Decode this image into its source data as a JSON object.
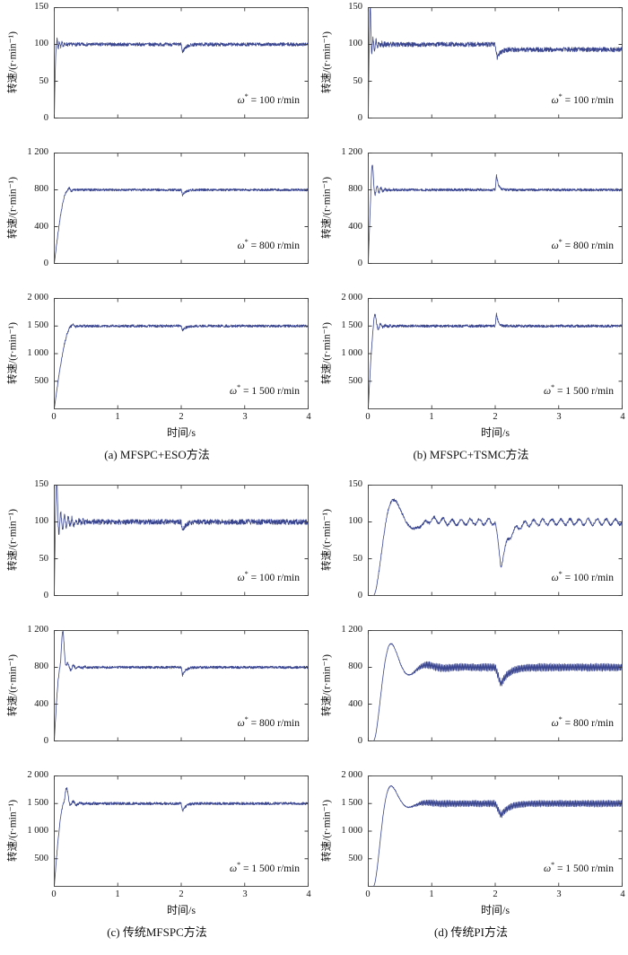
{
  "chart_data": {
    "type": "line",
    "xlabel": "时间/s",
    "ylabel": "转速/(r·min⁻¹)",
    "x_range": [
      0,
      4
    ],
    "xtick_vals": [
      0,
      1,
      2,
      3,
      4
    ],
    "xtick_labels": [
      "0",
      "1",
      "2",
      "3",
      "4"
    ],
    "line_color": "#39458f",
    "axis_color": "#3f3f3f",
    "panels": [
      {
        "caption": "(a) MFSPC+ESO方法",
        "subplots": [
          {
            "annotation": "ω* = 100 r/min",
            "setpoint": 100,
            "ylim": [
              0,
              150
            ],
            "ytick_vals": [
              0,
              50,
              100,
              150
            ],
            "ytick_labels": [
              "0",
              "50",
              "100",
              "150"
            ],
            "signal": {
              "model": "ramp",
              "rise": 0.035,
              "osc": {
                "amp": 9,
                "freq": 26,
                "tau": 0.06
              },
              "noise": 2.4,
              "dist": {
                "depth": 11,
                "w": 0.02,
                "r": 0.05
              }
            }
          },
          {
            "annotation": "ω* = 800 r/min",
            "setpoint": 800,
            "ylim": [
              0,
              1200
            ],
            "ytick_vals": [
              0,
              400,
              800,
              1200
            ],
            "ytick_labels": [
              "0",
              "400",
              "800",
              "1 200"
            ],
            "signal": {
              "model": "ramp",
              "rise": 0.22,
              "osc": {
                "amp": 25,
                "freq": 14,
                "tau": 0.07
              },
              "noise": 13,
              "dist": {
                "depth": 55,
                "w": 0.02,
                "r": 0.05
              }
            }
          },
          {
            "annotation": "ω* = 1 500 r/min",
            "setpoint": 1500,
            "ylim": [
              0,
              2000
            ],
            "ytick_vals": [
              500,
              1000,
              1500,
              2000
            ],
            "ytick_labels": [
              "500",
              "1 000",
              "1 500",
              "2 000"
            ],
            "signal": {
              "model": "ramp",
              "rise": 0.28,
              "osc": {
                "amp": 40,
                "freq": 12,
                "tau": 0.07
              },
              "noise": 24,
              "dist": {
                "depth": 80,
                "w": 0.02,
                "r": 0.05
              }
            }
          }
        ]
      },
      {
        "caption": "(b) MFSPC+TSMC方法",
        "subplots": [
          {
            "annotation": "ω* = 100 r/min",
            "setpoint": 100,
            "ylim": [
              0,
              150
            ],
            "ytick_vals": [
              0,
              50,
              100,
              150
            ],
            "ytick_labels": [
              "0",
              "50",
              "100",
              "150"
            ],
            "signal": {
              "model": "ramp",
              "rise": 0.02,
              "spike": {
                "amp": 38,
                "t": 0.03,
                "w": 0.012
              },
              "osc": {
                "amp": 16,
                "freq": 22,
                "tau": 0.09
              },
              "noise": 3.2,
              "dist": {
                "depth": 16,
                "w": 0.03,
                "r": 0.06
              },
              "post": -7
            }
          },
          {
            "annotation": "ω* = 800 r/min",
            "setpoint": 800,
            "ylim": [
              0,
              1200
            ],
            "ytick_vals": [
              0,
              400,
              800,
              1200
            ],
            "ytick_labels": [
              "0",
              "400",
              "800",
              "1 200"
            ],
            "signal": {
              "model": "ramp",
              "rise": 0.06,
              "spike": {
                "amp": 260,
                "t": 0.06,
                "w": 0.018
              },
              "osc": {
                "amp": 90,
                "freq": 16,
                "tau": 0.09
              },
              "noise": 14,
              "dist": {
                "depth": -160,
                "w": 0.02,
                "r": 0.03
              }
            }
          },
          {
            "annotation": "ω* = 1 500 r/min",
            "setpoint": 1500,
            "ylim": [
              0,
              2000
            ],
            "ytick_vals": [
              500,
              1000,
              1500,
              2000
            ],
            "ytick_labels": [
              "500",
              "1 000",
              "1 500",
              "2 000"
            ],
            "signal": {
              "model": "ramp",
              "rise": 0.1,
              "spike": {
                "amp": 180,
                "t": 0.1,
                "w": 0.02
              },
              "osc": {
                "amp": 90,
                "freq": 13,
                "tau": 0.09
              },
              "noise": 25,
              "dist": {
                "depth": -220,
                "w": 0.02,
                "r": 0.03
              }
            }
          }
        ]
      },
      {
        "caption": "(c) 传统MFSPC方法",
        "subplots": [
          {
            "annotation": "ω* = 100 r/min",
            "setpoint": 100,
            "ylim": [
              0,
              150
            ],
            "ytick_vals": [
              0,
              50,
              100,
              150
            ],
            "ytick_labels": [
              "0",
              "50",
              "100",
              "150"
            ],
            "signal": {
              "model": "ramp",
              "rise": 0.028,
              "spike": {
                "amp": 44,
                "t": 0.035,
                "w": 0.018
              },
              "osc": {
                "amp": 22,
                "freq": 17,
                "tau": 0.16
              },
              "noise": 3.6,
              "dist": {
                "depth": 13,
                "w": 0.02,
                "r": 0.05
              }
            }
          },
          {
            "annotation": "ω* = 800 r/min",
            "setpoint": 800,
            "ylim": [
              0,
              1200
            ],
            "ytick_vals": [
              0,
              400,
              800,
              1200
            ],
            "ytick_labels": [
              "0",
              "400",
              "800",
              "1 200"
            ],
            "signal": {
              "model": "ramp",
              "rise": 0.1,
              "spike": {
                "amp": 350,
                "t": 0.14,
                "w": 0.03
              },
              "osc": {
                "amp": 100,
                "freq": 11,
                "tau": 0.13
              },
              "noise": 14,
              "dist": {
                "depth": 85,
                "w": 0.02,
                "r": 0.05
              }
            }
          },
          {
            "annotation": "ω* = 1 500 r/min",
            "setpoint": 1500,
            "ylim": [
              0,
              2000
            ],
            "ytick_vals": [
              500,
              1000,
              1500,
              2000
            ],
            "ytick_labels": [
              "500",
              "1 000",
              "1 500",
              "2 000"
            ],
            "signal": {
              "model": "ramp",
              "rise": 0.16,
              "spike": {
                "amp": 210,
                "t": 0.2,
                "w": 0.035
              },
              "osc": {
                "amp": 110,
                "freq": 9,
                "tau": 0.13
              },
              "noise": 24,
              "dist": {
                "depth": 140,
                "w": 0.02,
                "r": 0.05
              }
            }
          }
        ]
      },
      {
        "caption": "(d) 传统PI方法",
        "subplots": [
          {
            "annotation": "ω* = 100 r/min",
            "setpoint": 100,
            "ylim": [
              0,
              150
            ],
            "ytick_vals": [
              0,
              50,
              100,
              150
            ],
            "ytick_labels": [
              "0",
              "50",
              "100",
              "150"
            ],
            "signal": {
              "model": "pi",
              "t0": 0.08,
              "tp": 0.32,
              "M": 0.3,
              "ripple": {
                "amp": 4,
                "freq": 7
              },
              "noise": 1.8,
              "dist": {
                "depth": 60,
                "w": 0.09,
                "r": 0.13
              }
            }
          },
          {
            "annotation": "ω* = 800 r/min",
            "setpoint": 800,
            "ylim": [
              0,
              1200
            ],
            "ytick_vals": [
              0,
              400,
              800,
              1200
            ],
            "ytick_labels": [
              "0",
              "400",
              "800",
              "1 200"
            ],
            "signal": {
              "model": "pi",
              "t0": 0.08,
              "tp": 0.28,
              "M": 0.32,
              "ripple": {
                "amp": 38,
                "freq": 46
              },
              "noise": 6,
              "dist": {
                "depth": 185,
                "w": 0.09,
                "r": 0.12
              }
            }
          },
          {
            "annotation": "ω* = 1 500 r/min",
            "setpoint": 1500,
            "ylim": [
              0,
              2000
            ],
            "ytick_vals": [
              500,
              1000,
              1500,
              2000
            ],
            "ytick_labels": [
              "500",
              "1 000",
              "1 500",
              "2 000"
            ],
            "signal": {
              "model": "pi",
              "t0": 0.08,
              "tp": 0.28,
              "M": 0.21,
              "ripple": {
                "amp": 55,
                "freq": 46
              },
              "noise": 9,
              "dist": {
                "depth": 215,
                "w": 0.09,
                "r": 0.12
              }
            }
          }
        ]
      }
    ]
  }
}
